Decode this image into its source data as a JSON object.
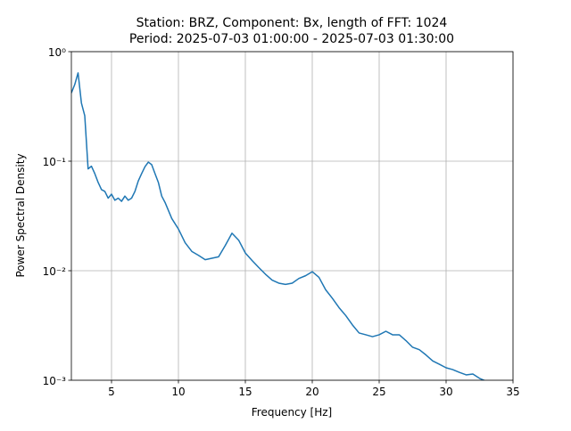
{
  "chart_data": {
    "type": "line",
    "title": "Station: BRZ, Component: Bx, length of FFT: 1024",
    "subtitle": "Period: 2025-07-03 01:00:00 - 2025-07-03 01:30:00",
    "xlabel": "Frequency [Hz]",
    "ylabel": "Power Spectral Density",
    "x": [
      2.0,
      2.25,
      2.5,
      2.75,
      3.0,
      3.25,
      3.5,
      3.75,
      4.0,
      4.25,
      4.5,
      4.75,
      5.0,
      5.25,
      5.5,
      5.75,
      6.0,
      6.25,
      6.5,
      6.75,
      7.0,
      7.25,
      7.5,
      7.75,
      8.0,
      8.25,
      8.5,
      8.75,
      9.0,
      9.5,
      10,
      10.5,
      11,
      11.5,
      12,
      12.5,
      13,
      13.5,
      14,
      14.5,
      15,
      15.5,
      16,
      16.5,
      17,
      17.5,
      18,
      18.5,
      19,
      19.5,
      20,
      20.5,
      21,
      21.5,
      22,
      22.5,
      23,
      23.5,
      24,
      24.5,
      25,
      25.5,
      26,
      26.5,
      27,
      27.5,
      28,
      28.5,
      29,
      29.5,
      30,
      30.5,
      31,
      31.5,
      32,
      32.5,
      33
    ],
    "series": [
      {
        "name": "PSD",
        "color": "#1f77b4",
        "values": [
          0.42,
          0.5,
          0.64,
          0.34,
          0.26,
          0.085,
          0.09,
          0.077,
          0.064,
          0.055,
          0.053,
          0.046,
          0.05,
          0.044,
          0.046,
          0.043,
          0.048,
          0.044,
          0.046,
          0.053,
          0.066,
          0.077,
          0.089,
          0.098,
          0.093,
          0.077,
          0.064,
          0.048,
          0.042,
          0.03,
          0.024,
          0.018,
          0.015,
          0.0138,
          0.0126,
          0.013,
          0.0134,
          0.017,
          0.022,
          0.019,
          0.0145,
          0.0124,
          0.0107,
          0.0093,
          0.0082,
          0.0077,
          0.0075,
          0.0077,
          0.0085,
          0.009,
          0.0098,
          0.0087,
          0.0067,
          0.0056,
          0.0046,
          0.0039,
          0.0032,
          0.0027,
          0.0026,
          0.0025,
          0.0026,
          0.0028,
          0.0026,
          0.0026,
          0.0023,
          0.002,
          0.0019,
          0.0017,
          0.0015,
          0.0014,
          0.0013,
          0.00125,
          0.00118,
          0.00112,
          0.00114,
          0.00104,
          0.00098
        ]
      }
    ],
    "xlim": [
      2,
      35
    ],
    "xticks": [
      5,
      10,
      15,
      20,
      25,
      30,
      35
    ],
    "ylim": [
      0.001,
      1
    ],
    "ylog": true,
    "yticks": [
      {
        "value": 0.001,
        "label": "10⁻³"
      },
      {
        "value": 0.01,
        "label": "10⁻²"
      },
      {
        "value": 0.1,
        "label": "10⁻¹"
      },
      {
        "value": 1,
        "label": "10⁰"
      }
    ],
    "grid": true
  }
}
